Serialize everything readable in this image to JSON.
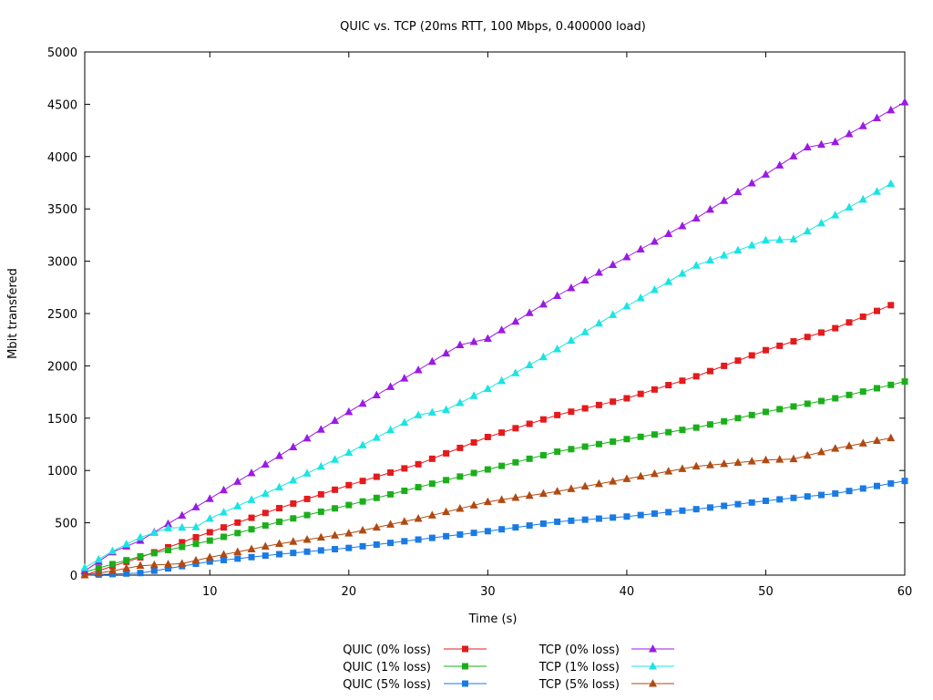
{
  "chart_data": {
    "type": "line",
    "title": "QUIC vs. TCP (20ms RTT, 100 Mbps, 0.400000 load)",
    "xlabel": "Time (s)",
    "ylabel": "Mbit transfered",
    "xlim": [
      1,
      60
    ],
    "ylim": [
      0,
      5000
    ],
    "xticks": [
      10,
      20,
      30,
      40,
      50,
      60
    ],
    "yticks": [
      0,
      500,
      1000,
      1500,
      2000,
      2500,
      3000,
      3500,
      4000,
      4500,
      5000
    ],
    "grid": false,
    "legend_position": "bottom-center",
    "series": [
      {
        "name": "QUIC (0% loss)",
        "color": "#e41a1c",
        "marker": "square",
        "x": [
          1,
          5,
          10,
          15,
          20,
          25,
          30,
          35,
          40,
          45,
          50,
          55,
          59
        ],
        "y": [
          0,
          170,
          410,
          640,
          860,
          1060,
          1320,
          1530,
          1690,
          1900,
          2150,
          2360,
          2580
        ]
      },
      {
        "name": "QUIC (1% loss)",
        "color": "#1aaf1a",
        "marker": "square",
        "x": [
          1,
          5,
          10,
          15,
          20,
          25,
          30,
          35,
          40,
          45,
          50,
          55,
          60
        ],
        "y": [
          30,
          180,
          330,
          510,
          670,
          840,
          1010,
          1180,
          1300,
          1410,
          1560,
          1690,
          1850
        ]
      },
      {
        "name": "QUIC (5% loss)",
        "color": "#1a7ae4",
        "marker": "square",
        "x": [
          1,
          5,
          10,
          15,
          20,
          25,
          30,
          35,
          40,
          45,
          50,
          55,
          60
        ],
        "y": [
          0,
          20,
          130,
          200,
          260,
          340,
          420,
          510,
          560,
          630,
          710,
          780,
          900
        ]
      },
      {
        "name": "TCP (0% loss)",
        "color": "#9b1ae4",
        "marker": "triangle",
        "x": [
          1,
          3,
          5,
          10,
          15,
          20,
          25,
          28,
          30,
          35,
          40,
          45,
          50,
          53,
          55,
          60
        ],
        "y": [
          40,
          220,
          330,
          730,
          1140,
          1560,
          1960,
          2200,
          2260,
          2670,
          3040,
          3410,
          3830,
          4090,
          4140,
          4520
        ]
      },
      {
        "name": "TCP (1% loss)",
        "color": "#1ae4e4",
        "marker": "triangle",
        "x": [
          1,
          3,
          5,
          7,
          9,
          10,
          15,
          20,
          25,
          27,
          30,
          35,
          40,
          45,
          50,
          52,
          55,
          59
        ],
        "y": [
          70,
          230,
          360,
          450,
          460,
          540,
          840,
          1170,
          1530,
          1580,
          1780,
          2160,
          2570,
          2960,
          3200,
          3210,
          3440,
          3740
        ]
      },
      {
        "name": "TCP (5% loss)",
        "color": "#b04a12",
        "marker": "triangle",
        "x": [
          1,
          3,
          5,
          8,
          10,
          15,
          20,
          25,
          30,
          35,
          40,
          45,
          50,
          52,
          55,
          59
        ],
        "y": [
          0,
          40,
          90,
          110,
          170,
          300,
          400,
          540,
          700,
          800,
          920,
          1040,
          1100,
          1110,
          1210,
          1310
        ]
      }
    ]
  }
}
